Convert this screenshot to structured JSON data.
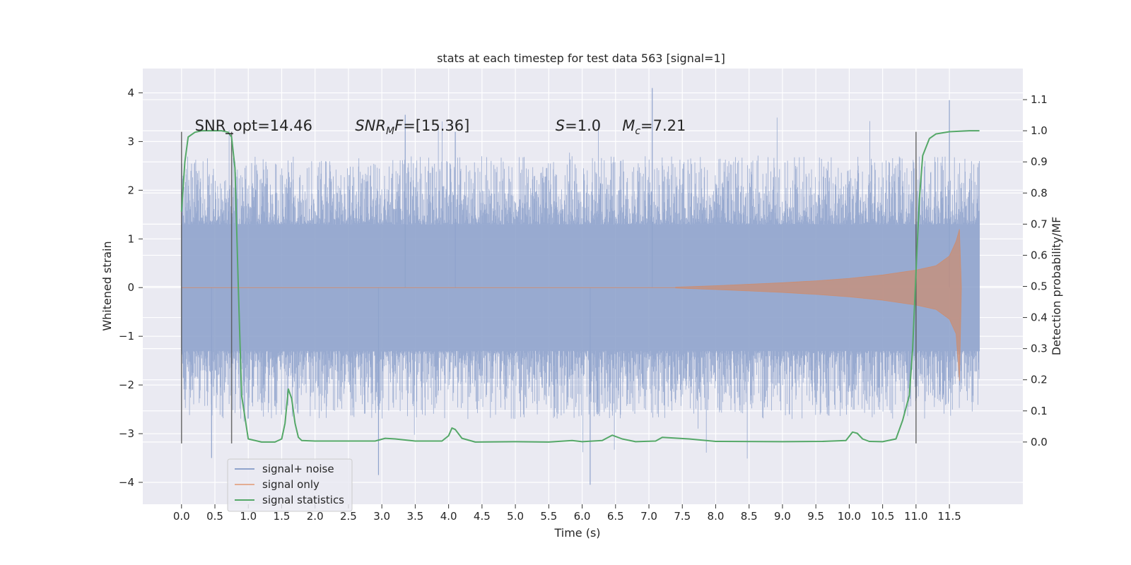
{
  "chart_data": {
    "type": "line",
    "title": "stats at each timestep for test data 563 [signal=1]",
    "xlabel": "Time (s)",
    "ylabel_left": "Whitened strain",
    "ylabel_right": "Detection probability/MF",
    "xlim": [
      -0.58,
      12.6
    ],
    "ylim_left": [
      -4.45,
      4.5
    ],
    "ylim_right": [
      -0.2,
      1.2
    ],
    "x_ticks": [
      "0.0",
      "0.5",
      "1.0",
      "1.5",
      "2.0",
      "2.5",
      "3.0",
      "3.5",
      "4.0",
      "4.5",
      "5.0",
      "5.5",
      "6.0",
      "6.5",
      "7.0",
      "7.5",
      "8.0",
      "8.5",
      "9.0",
      "9.5",
      "10.0",
      "10.5",
      "11.0",
      "11.5"
    ],
    "y_ticks_left": [
      "4",
      "3",
      "2",
      "1",
      "0",
      "−1",
      "−2",
      "−3",
      "−4"
    ],
    "y_ticks_right": [
      "1.1",
      "1.0",
      "0.9",
      "0.8",
      "0.7",
      "0.6",
      "0.5",
      "0.4",
      "0.3",
      "0.2",
      "0.1",
      "0.0"
    ],
    "grid": true,
    "legend_position": "lower-left",
    "series": [
      {
        "name": "signal+ noise",
        "color": "#8fa3cc",
        "axis": "left",
        "description_values": {
          "t_start": 0.0,
          "t_end": 11.95,
          "typical_abs_max": 2.2,
          "peak_max": 4.1,
          "peak_min": -4.05
        }
      },
      {
        "name": "signal only",
        "color": "#dd8452",
        "axis": "left",
        "x": [
          7.4,
          8.0,
          8.5,
          9.0,
          9.5,
          10.0,
          10.5,
          11.0,
          11.3,
          11.5,
          11.6,
          11.65,
          11.68
        ],
        "envelope": [
          0.01,
          0.04,
          0.07,
          0.1,
          0.14,
          0.19,
          0.26,
          0.36,
          0.45,
          0.65,
          0.95,
          1.2,
          0.0
        ]
      },
      {
        "name": "signal statistics",
        "color": "#55a868",
        "axis": "right",
        "x": [
          0.0,
          0.05,
          0.1,
          0.2,
          0.3,
          0.45,
          0.6,
          0.7,
          0.75,
          0.8,
          0.85,
          0.9,
          1.0,
          1.2,
          1.4,
          1.5,
          1.55,
          1.6,
          1.65,
          1.7,
          1.75,
          1.8,
          2.0,
          2.5,
          2.9,
          3.05,
          3.2,
          3.5,
          3.9,
          4.0,
          4.05,
          4.1,
          4.2,
          4.4,
          5.0,
          5.5,
          5.85,
          6.0,
          6.3,
          6.45,
          6.6,
          6.8,
          7.1,
          7.2,
          7.6,
          8.0,
          9.0,
          9.6,
          9.95,
          10.05,
          10.12,
          10.2,
          10.3,
          10.5,
          10.7,
          10.8,
          10.9,
          10.95,
          11.0,
          11.05,
          11.1,
          11.2,
          11.3,
          11.5,
          11.8,
          11.95
        ],
        "values": [
          0.74,
          0.9,
          0.98,
          0.995,
          1.0,
          1.0,
          1.0,
          0.995,
          0.98,
          0.88,
          0.5,
          0.15,
          0.01,
          0.0,
          0.0,
          0.01,
          0.06,
          0.17,
          0.14,
          0.06,
          0.015,
          0.005,
          0.003,
          0.003,
          0.003,
          0.012,
          0.01,
          0.003,
          0.003,
          0.02,
          0.045,
          0.04,
          0.012,
          0.0,
          0.001,
          0.0,
          0.005,
          0.001,
          0.005,
          0.022,
          0.01,
          0.001,
          0.003,
          0.015,
          0.01,
          0.002,
          0.001,
          0.002,
          0.005,
          0.032,
          0.028,
          0.01,
          0.002,
          0.001,
          0.01,
          0.07,
          0.15,
          0.3,
          0.55,
          0.78,
          0.92,
          0.975,
          0.99,
          0.997,
          1.0,
          1.0
        ]
      }
    ],
    "vertical_lines_x": [
      0.0,
      0.75,
      11.0
    ],
    "annotations": [
      {
        "id": "snr_opt",
        "text": "SNR_opt=14.46",
        "x": 0.2
      },
      {
        "id": "snr_mf",
        "text": "SNR_MF=[15.36]",
        "x": 2.6
      },
      {
        "id": "s",
        "text": "S=1.0",
        "x": 5.6
      },
      {
        "id": "mc",
        "text": "M_c=7.21",
        "x": 6.6
      }
    ]
  },
  "legend": {
    "items": [
      "signal+ noise",
      "signal only",
      "signal statistics"
    ]
  },
  "colors": {
    "plot_bg": "#eaeaf2",
    "grid": "#ffffff",
    "noise": "#8fa3cc",
    "signal": "#dd8452",
    "stat": "#55a868",
    "vline": "#555555"
  }
}
